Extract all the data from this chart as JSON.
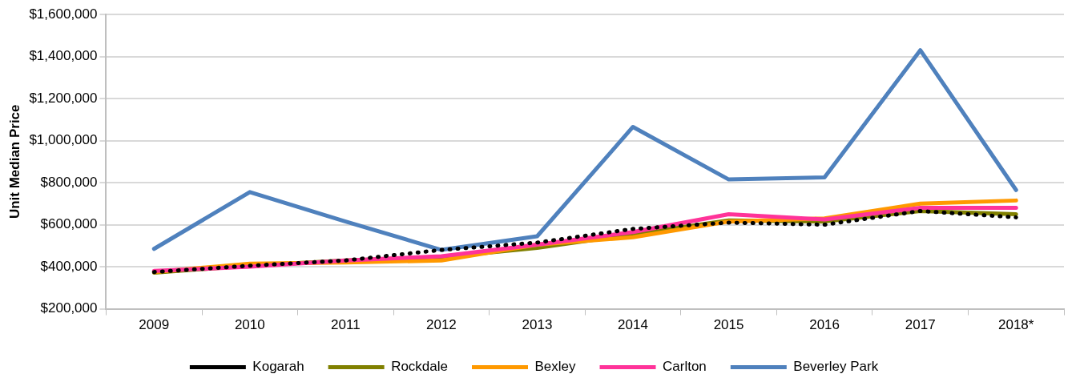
{
  "chart_data": {
    "type": "line",
    "ylabel": "Unit Median Price",
    "categories": [
      "2009",
      "2010",
      "2011",
      "2012",
      "2013",
      "2014",
      "2015",
      "2016",
      "2017",
      "2018*"
    ],
    "series": [
      {
        "name": "Kogarah",
        "color": "#000000",
        "line_style": "dotted",
        "values": [
          375000,
          405000,
          430000,
          480000,
          515000,
          580000,
          610000,
          600000,
          665000,
          635000
        ]
      },
      {
        "name": "Rockdale",
        "color": "#808000",
        "values": [
          372000,
          405000,
          430000,
          445000,
          490000,
          555000,
          620000,
          615000,
          665000,
          650000
        ]
      },
      {
        "name": "Bexley",
        "color": "#ff9900",
        "values": [
          375000,
          415000,
          420000,
          430000,
          505000,
          540000,
          615000,
          630000,
          700000,
          715000
        ]
      },
      {
        "name": "Carlton",
        "color": "#ff3399",
        "values": [
          380000,
          400000,
          430000,
          450000,
          505000,
          565000,
          650000,
          625000,
          680000,
          680000
        ]
      },
      {
        "name": "Beverley Park",
        "color": "#4f81bd",
        "values": [
          485000,
          755000,
          615000,
          480000,
          545000,
          1065000,
          815000,
          825000,
          1430000,
          765000
        ]
      }
    ],
    "ylim": [
      200000,
      1600000
    ],
    "yticks": [
      {
        "value": 200000,
        "label": "$200,000"
      },
      {
        "value": 400000,
        "label": "$400,000"
      },
      {
        "value": 600000,
        "label": "$600,000"
      },
      {
        "value": 800000,
        "label": "$800,000"
      },
      {
        "value": 1000000,
        "label": "$1,000,000"
      },
      {
        "value": 1200000,
        "label": "$1,200,000"
      },
      {
        "value": 1400000,
        "label": "$1,400,000"
      },
      {
        "value": 1600000,
        "label": "$1,600,000"
      }
    ],
    "grid": "y",
    "legend": "bottom",
    "marker": "none",
    "line_style": "solid"
  }
}
